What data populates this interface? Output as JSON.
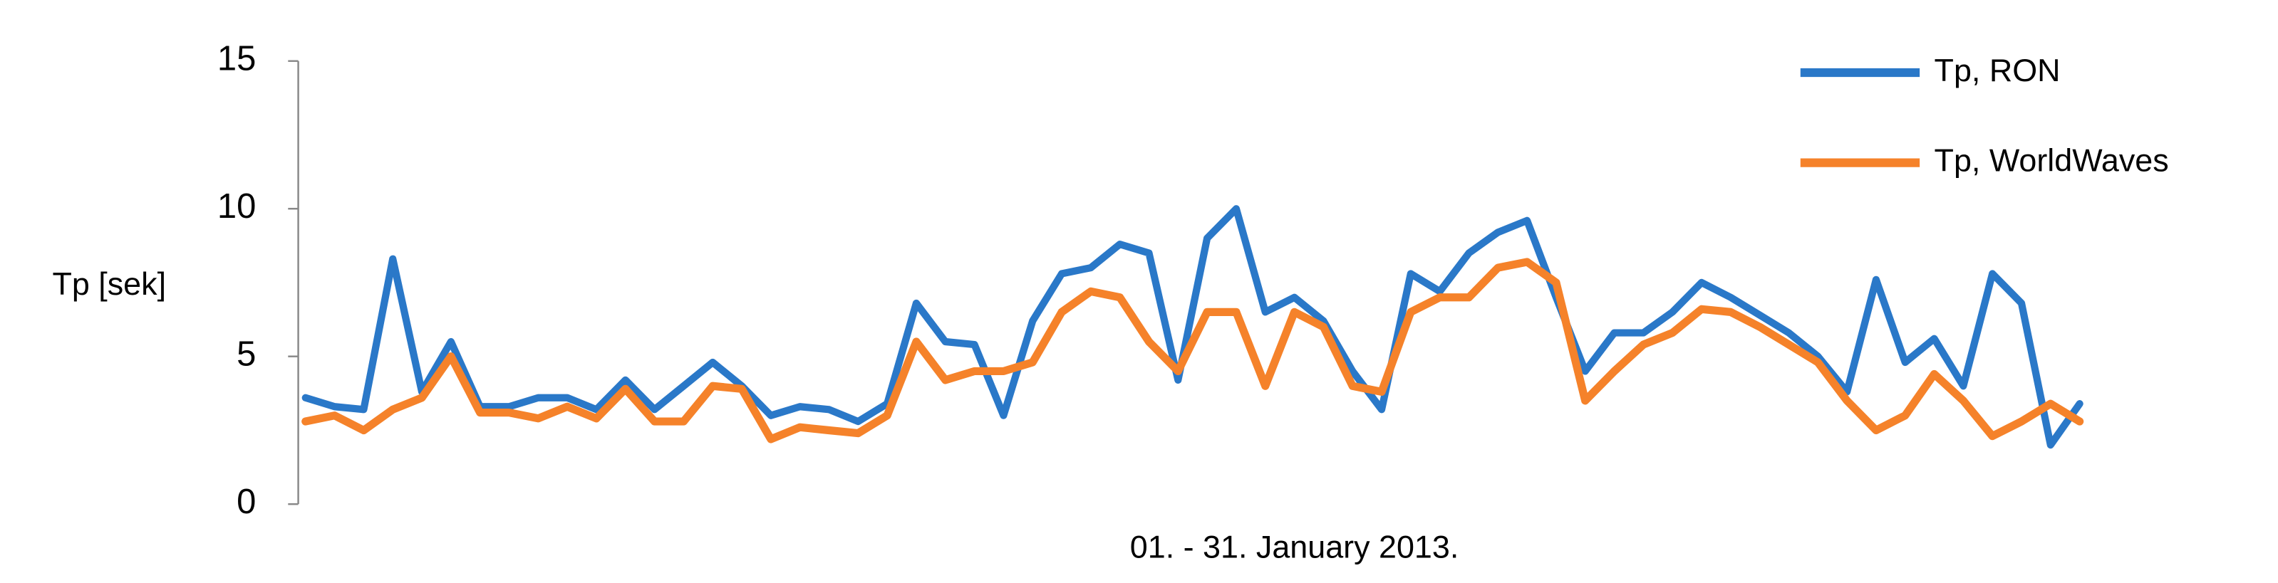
{
  "chart_data": {
    "type": "line",
    "y_label": "Tp [sek]",
    "x_label": "01. - 31. January 2013.",
    "ylim": [
      0,
      15
    ],
    "yticks": [
      0,
      5,
      10,
      15
    ],
    "legend": "top-right",
    "series": [
      {
        "name": "Tp, RON",
        "color": "#2a78c8",
        "values": [
          3.6,
          3.3,
          3.2,
          8.3,
          3.8,
          5.5,
          3.3,
          3.3,
          3.6,
          3.6,
          3.2,
          4.2,
          3.2,
          4.0,
          4.8,
          4.0,
          3.0,
          3.3,
          3.2,
          2.8,
          3.4,
          6.8,
          5.5,
          5.4,
          3.0,
          6.2,
          7.8,
          8.0,
          8.8,
          8.5,
          4.2,
          9.0,
          10.0,
          6.5,
          7.0,
          6.2,
          4.5,
          3.2,
          7.8,
          7.2,
          8.5,
          9.2,
          9.6,
          7.0,
          4.5,
          5.8,
          5.8,
          6.5,
          7.5,
          7.0,
          6.4,
          5.8,
          5.0,
          3.8,
          7.6,
          4.8,
          5.6,
          4.0,
          7.8,
          6.8,
          2.0,
          3.4
        ]
      },
      {
        "name": "Tp, WorldWaves",
        "color": "#f5822a",
        "values": [
          2.8,
          3.0,
          2.5,
          3.2,
          3.6,
          5.0,
          3.1,
          3.1,
          2.9,
          3.3,
          2.9,
          3.9,
          2.8,
          2.8,
          4.0,
          3.9,
          2.2,
          2.6,
          2.5,
          2.4,
          3.0,
          5.5,
          4.2,
          4.5,
          4.5,
          4.8,
          6.5,
          7.2,
          7.0,
          5.5,
          4.5,
          6.5,
          6.5,
          4.0,
          6.5,
          6.0,
          4.0,
          3.8,
          6.5,
          7.0,
          7.0,
          8.0,
          8.2,
          7.5,
          3.5,
          4.5,
          5.4,
          5.8,
          6.6,
          6.5,
          6.0,
          5.4,
          4.8,
          3.5,
          2.5,
          3.0,
          4.4,
          3.5,
          2.3,
          2.8,
          3.4,
          2.8
        ]
      }
    ]
  }
}
